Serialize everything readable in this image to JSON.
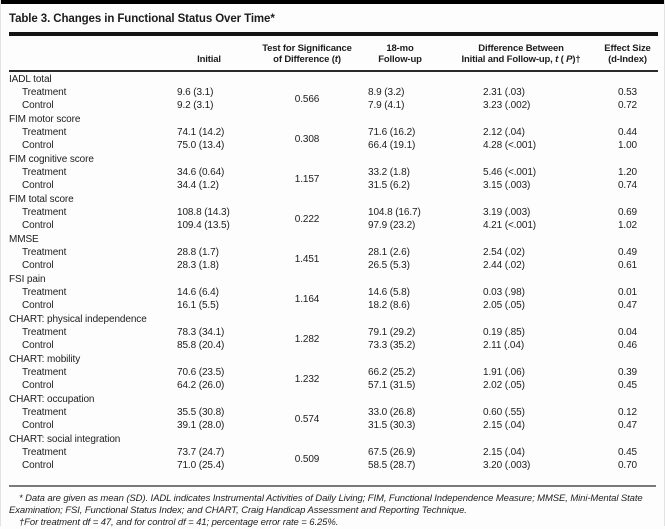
{
  "title": "Table 3. Changes in Functional Status Over Time*",
  "header": {
    "initial": "Initial",
    "test_line1": "Test for Significance",
    "test_line2_pre": "of Difference (",
    "test_line2_it": "t",
    "test_line2_post": ")",
    "followup_line1": "18-mo",
    "followup_line2": "Follow-up",
    "diff_line1": "Difference Between",
    "diff_line2_pre": "Initial and Follow-up, ",
    "diff_line2_it1": "t",
    "diff_line2_mid": " ( ",
    "diff_line2_it2": "P",
    "diff_line2_post": ")†",
    "effect_line1": "Effect Size",
    "effect_line2": "(d-Index)"
  },
  "table": {
    "groups": [
      {
        "label": "IADL total",
        "test": "0.566",
        "rows": [
          {
            "label": "Treatment",
            "initial": "9.6 (3.1)",
            "followup": "8.9 (3.2)",
            "diff": "2.31 (.03)",
            "effect": "0.53"
          },
          {
            "label": "Control",
            "initial": "9.2 (3.1)",
            "followup": "7.9 (4.1)",
            "diff": "3.23 (.002)",
            "effect": "0.72"
          }
        ]
      },
      {
        "label": "FIM motor score",
        "test": "0.308",
        "rows": [
          {
            "label": "Treatment",
            "initial": "74.1 (14.2)",
            "followup": "71.6 (16.2)",
            "diff": "2.12 (.04)",
            "effect": "0.44"
          },
          {
            "label": "Control",
            "initial": "75.0 (13.4)",
            "followup": "66.4 (19.1)",
            "diff": "4.28 (<.001)",
            "effect": "1.00"
          }
        ]
      },
      {
        "label": "FIM cognitive score",
        "test": "1.157",
        "rows": [
          {
            "label": "Treatment",
            "initial": "34.6 (0.64)",
            "followup": "33.2 (1.8)",
            "diff": "5.46 (<.001)",
            "effect": "1.20"
          },
          {
            "label": "Control",
            "initial": "34.4 (1.2)",
            "followup": "31.5 (6.2)",
            "diff": "3.15 (.003)",
            "effect": "0.74"
          }
        ]
      },
      {
        "label": "FIM total score",
        "test": "0.222",
        "rows": [
          {
            "label": "Treatment",
            "initial": "108.8 (14.3)",
            "followup": "104.8 (16.7)",
            "diff": "3.19 (.003)",
            "effect": "0.69"
          },
          {
            "label": "Control",
            "initial": "109.4 (13.5)",
            "followup": "97.9 (23.2)",
            "diff": "4.21 (<.001)",
            "effect": "1.02"
          }
        ]
      },
      {
        "label": "MMSE",
        "test": "1.451",
        "rows": [
          {
            "label": "Treatment",
            "initial": "28.8 (1.7)",
            "followup": "28.1 (2.6)",
            "diff": "2.54 (.02)",
            "effect": "0.49"
          },
          {
            "label": "Control",
            "initial": "28.3 (1.8)",
            "followup": "26.5 (5.3)",
            "diff": "2.44 (.02)",
            "effect": "0.61"
          }
        ]
      },
      {
        "label": "FSI pain",
        "test": "1.164",
        "rows": [
          {
            "label": "Treatment",
            "initial": "14.6 (6.4)",
            "followup": "14.6 (5.8)",
            "diff": "0.03 (.98)",
            "effect": "0.01"
          },
          {
            "label": "Control",
            "initial": "16.1 (5.5)",
            "followup": "18.2 (8.6)",
            "diff": "2.05 (.05)",
            "effect": "0.47"
          }
        ]
      },
      {
        "label": "CHART: physical independence",
        "test": "1.282",
        "rows": [
          {
            "label": "Treatment",
            "initial": "78.3 (34.1)",
            "followup": "79.1 (29.2)",
            "diff": "0.19 (.85)",
            "effect": "0.04"
          },
          {
            "label": "Control",
            "initial": "85.8 (20.4)",
            "followup": "73.3 (35.2)",
            "diff": "2.11 (.04)",
            "effect": "0.46"
          }
        ]
      },
      {
        "label": "CHART: mobility",
        "test": "1.232",
        "rows": [
          {
            "label": "Treatment",
            "initial": "70.6 (23.5)",
            "followup": "66.2 (25.2)",
            "diff": "1.91 (.06)",
            "effect": "0.39"
          },
          {
            "label": "Control",
            "initial": "64.2 (26.0)",
            "followup": "57.1 (31.5)",
            "diff": "2.02 (.05)",
            "effect": "0.45"
          }
        ]
      },
      {
        "label": "CHART: occupation",
        "test": "0.574",
        "rows": [
          {
            "label": "Treatment",
            "initial": "35.5 (30.8)",
            "followup": "33.0 (26.8)",
            "diff": "0.60 (.55)",
            "effect": "0.12"
          },
          {
            "label": "Control",
            "initial": "39.1 (28.0)",
            "followup": "31.5 (30.3)",
            "diff": "2.15 (.04)",
            "effect": "0.47"
          }
        ]
      },
      {
        "label": "CHART: social integration",
        "test": "0.509",
        "rows": [
          {
            "label": "Treatment",
            "initial": "73.7 (24.7)",
            "followup": "67.5 (26.9)",
            "diff": "2.15 (.04)",
            "effect": "0.45"
          },
          {
            "label": "Control",
            "initial": "71.0 (25.4)",
            "followup": "58.5 (28.7)",
            "diff": "3.20 (.003)",
            "effect": "0.70"
          }
        ]
      }
    ]
  },
  "footnotes": {
    "star": "* Data are given as mean (SD). IADL indicates Instrumental Activities of Daily Living; FIM, Functional Independence Measure; MMSE, Mini-Mental State Examination; FSI, Functional Status Index; and CHART, Craig Handicap Assessment and Reporting Technique.",
    "dagger": "†For treatment df = 47, and for control df = 41; percentage error rate = 6.25%."
  }
}
